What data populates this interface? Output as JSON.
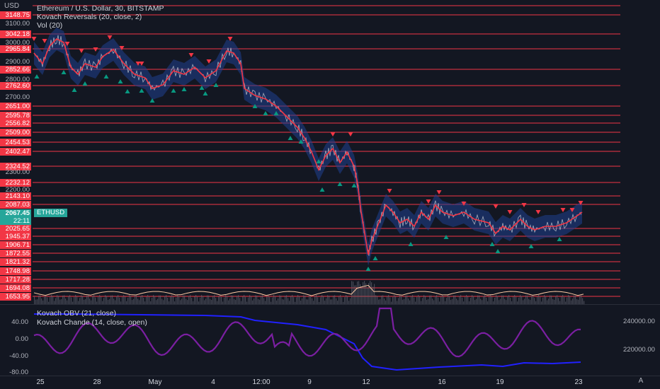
{
  "header": {
    "currency": "USD",
    "title": "Ethereum / U.S. Dollar, 30, BITSTAMP",
    "indicator1": "Kovach Reversals (20, close, 2)",
    "indicator2": "Vol (20)"
  },
  "symbol_label": "ETHUSD",
  "current_price": "2067.45",
  "countdown": "22:11",
  "price_levels": [
    "3148.75",
    "3042.18",
    "2965.84",
    "2852.66",
    "2762.60",
    "2651.00",
    "2595.78",
    "2556.82",
    "2509.00",
    "2454.53",
    "2402.47",
    "2324.52",
    "2232.12",
    "2143.10",
    "2087.03",
    "2025.65",
    "1945.37",
    "1906.71",
    "1872.55",
    "1821.32",
    "1748.98",
    "1717.28",
    "1694.08",
    "1653.95"
  ],
  "axis_ticks": [
    "3100.00",
    "3000.00",
    "2900.00",
    "2800.00",
    "2700.00",
    "2300.00",
    "2200.00"
  ],
  "oscillator": {
    "obv_label": "Kovach OBV (21, close)",
    "chande_label": "Kovach Chande (14, close, open)",
    "left_ticks": [
      "40.00",
      "0.00",
      "-40.00",
      "-80.00"
    ],
    "right_ticks": [
      "240000.00",
      "220000.00"
    ]
  },
  "x_axis": [
    "25",
    "28",
    "May",
    "4",
    "12:00",
    "9",
    "12",
    "16",
    "19",
    "23"
  ],
  "auto_button": "A",
  "colors": {
    "background": "#131722",
    "level_line": "#f23645",
    "ma_line": "#f23645",
    "band": "#1f3f8f",
    "buy_marker": "#089981",
    "sell_marker": "#f23645",
    "obv_line": "#2121ff",
    "chande_line": "#7b1fa2",
    "volume_line": "#ffc9a3"
  }
}
